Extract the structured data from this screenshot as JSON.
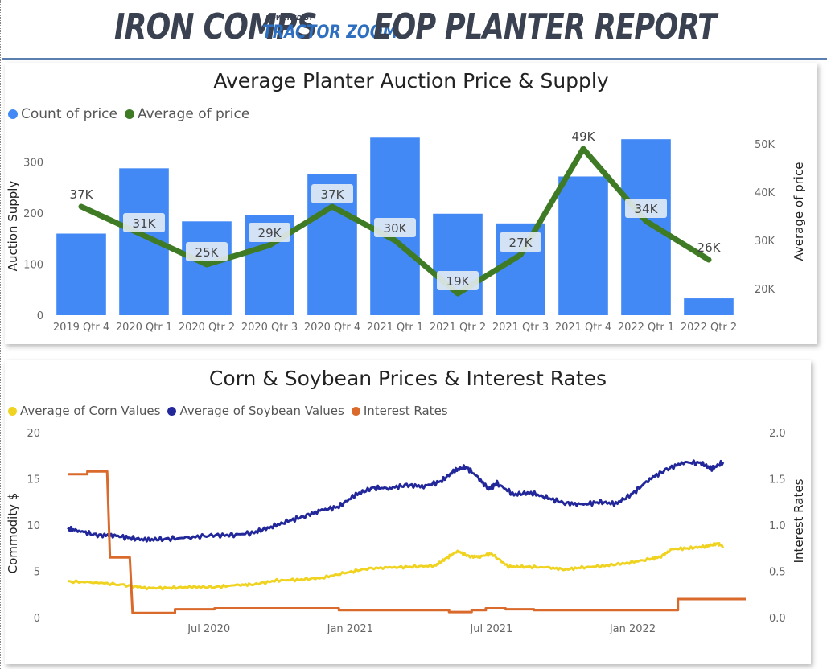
{
  "header": {
    "brand_main": "IRON COMPS",
    "brand_powered": "POWERED BY",
    "brand_sub": "TRACTOR ZOOM",
    "report_title": "EOP PLANTER REPORT"
  },
  "colors": {
    "bar": "#4389f5",
    "avg_line": "#3f7b24",
    "corn": "#f0d320",
    "soybean": "#22279a",
    "interest": "#da6a2c",
    "header_rule": "#5b7fae"
  },
  "chart1": {
    "title": "Average Planter Auction Price & Supply",
    "legend": [
      {
        "label": "Count of price",
        "color": "#4389f5"
      },
      {
        "label": "Average of price",
        "color": "#3f7b24"
      }
    ],
    "chart_data": {
      "type": "bar",
      "categories": [
        "2019 Qtr 4",
        "2020 Qtr 1",
        "2020 Qtr 2",
        "2020 Qtr 3",
        "2020 Qtr 4",
        "2021 Qtr 1",
        "2021 Qtr 2",
        "2021 Qtr 3",
        "2021 Qtr 4",
        "2022 Qtr 1",
        "2022 Qtr 2"
      ],
      "series": [
        {
          "name": "Count of price",
          "type": "bar",
          "axis": "left",
          "values": [
            160,
            288,
            184,
            197,
            276,
            348,
            199,
            180,
            272,
            345,
            33
          ]
        },
        {
          "name": "Average of price",
          "type": "line",
          "axis": "right",
          "values": [
            37000,
            31000,
            25000,
            29000,
            37000,
            30000,
            19000,
            27000,
            49000,
            34000,
            26000
          ],
          "data_labels": [
            "37K",
            "31K",
            "25K",
            "29K",
            "37K",
            "30K",
            "19K",
            "27K",
            "49K",
            "34K",
            "26K"
          ]
        }
      ],
      "ylabel": "Auction Supply",
      "ylim": [
        0,
        350
      ],
      "yticks": [
        {
          "v": 0,
          "label": "0"
        },
        {
          "v": 100,
          "label": "100"
        },
        {
          "v": 200,
          "label": "200"
        },
        {
          "v": 300,
          "label": "300"
        }
      ],
      "y2label": "Average of price",
      "y2lim": [
        14500,
        51500
      ],
      "y2ticks": [
        {
          "v": 20000,
          "label": "20K"
        },
        {
          "v": 30000,
          "label": "30K"
        },
        {
          "v": 40000,
          "label": "40K"
        },
        {
          "v": 50000,
          "label": "50K"
        }
      ]
    }
  },
  "chart2": {
    "title": "Corn & Soybean Prices & Interest Rates",
    "legend": [
      {
        "label": "Average of Corn Values",
        "color": "#f0d320"
      },
      {
        "label": "Average of Soybean Values",
        "color": "#22279a"
      },
      {
        "label": "Interest Rates",
        "color": "#da6a2c"
      }
    ],
    "chart_data": {
      "type": "line",
      "x_range": [
        "2019-12-15",
        "2022-06-01"
      ],
      "xticks": [
        {
          "t": 2020.5,
          "label": "Jul 2020"
        },
        {
          "t": 2021.0,
          "label": "Jan 2021"
        },
        {
          "t": 2021.5,
          "label": "Jul 2021"
        },
        {
          "t": 2022.0,
          "label": "Jan 2022"
        }
      ],
      "ylabel": "Commodity $",
      "ylim": [
        0,
        20
      ],
      "yticks": [
        {
          "v": 0,
          "label": "0"
        },
        {
          "v": 5,
          "label": "5"
        },
        {
          "v": 10,
          "label": "10"
        },
        {
          "v": 15,
          "label": "15"
        },
        {
          "v": 20,
          "label": "20"
        }
      ],
      "y2label": "Interest Rates",
      "y2lim": [
        0,
        2.0
      ],
      "y2ticks": [
        {
          "v": 0,
          "label": "0.0"
        },
        {
          "v": 0.5,
          "label": "0.5"
        },
        {
          "v": 1.0,
          "label": "1.0"
        },
        {
          "v": 1.5,
          "label": "1.5"
        },
        {
          "v": 2.0,
          "label": "2.0"
        }
      ],
      "series": [
        {
          "name": "Average of Soybean Values",
          "axis": "left",
          "points": [
            [
              2020.0,
              9.6
            ],
            [
              2020.04,
              9.4
            ],
            [
              2020.1,
              8.9
            ],
            [
              2020.16,
              8.9
            ],
            [
              2020.22,
              8.6
            ],
            [
              2020.28,
              8.4
            ],
            [
              2020.34,
              8.5
            ],
            [
              2020.42,
              8.6
            ],
            [
              2020.5,
              8.9
            ],
            [
              2020.58,
              8.9
            ],
            [
              2020.66,
              9.2
            ],
            [
              2020.72,
              9.8
            ],
            [
              2020.78,
              10.4
            ],
            [
              2020.84,
              11.0
            ],
            [
              2020.9,
              11.6
            ],
            [
              2020.96,
              12.0
            ],
            [
              2021.02,
              13.3
            ],
            [
              2021.08,
              14.0
            ],
            [
              2021.14,
              14.0
            ],
            [
              2021.2,
              14.3
            ],
            [
              2021.26,
              14.2
            ],
            [
              2021.32,
              14.7
            ],
            [
              2021.37,
              15.9
            ],
            [
              2021.41,
              16.3
            ],
            [
              2021.45,
              15.2
            ],
            [
              2021.49,
              13.9
            ],
            [
              2021.52,
              14.5
            ],
            [
              2021.58,
              13.3
            ],
            [
              2021.64,
              13.5
            ],
            [
              2021.7,
              12.9
            ],
            [
              2021.76,
              12.4
            ],
            [
              2021.82,
              12.2
            ],
            [
              2021.88,
              12.5
            ],
            [
              2021.94,
              12.3
            ],
            [
              2022.0,
              13.4
            ],
            [
              2022.06,
              15.0
            ],
            [
              2022.12,
              16.0
            ],
            [
              2022.18,
              16.8
            ],
            [
              2022.24,
              16.7
            ],
            [
              2022.28,
              16.1
            ],
            [
              2022.32,
              16.8
            ]
          ]
        },
        {
          "name": "Average of Corn Values",
          "axis": "left",
          "points": [
            [
              2020.0,
              3.9
            ],
            [
              2020.1,
              3.8
            ],
            [
              2020.2,
              3.5
            ],
            [
              2020.28,
              3.2
            ],
            [
              2020.36,
              3.2
            ],
            [
              2020.44,
              3.3
            ],
            [
              2020.52,
              3.3
            ],
            [
              2020.6,
              3.5
            ],
            [
              2020.66,
              3.6
            ],
            [
              2020.74,
              4.0
            ],
            [
              2020.82,
              4.1
            ],
            [
              2020.9,
              4.3
            ],
            [
              2020.98,
              4.8
            ],
            [
              2021.06,
              5.3
            ],
            [
              2021.14,
              5.4
            ],
            [
              2021.22,
              5.5
            ],
            [
              2021.3,
              5.6
            ],
            [
              2021.34,
              6.4
            ],
            [
              2021.38,
              7.2
            ],
            [
              2021.42,
              6.6
            ],
            [
              2021.46,
              6.6
            ],
            [
              2021.5,
              6.9
            ],
            [
              2021.56,
              5.5
            ],
            [
              2021.62,
              5.5
            ],
            [
              2021.7,
              5.4
            ],
            [
              2021.76,
              5.2
            ],
            [
              2021.82,
              5.4
            ],
            [
              2021.9,
              5.6
            ],
            [
              2021.98,
              5.9
            ],
            [
              2022.06,
              6.3
            ],
            [
              2022.1,
              6.6
            ],
            [
              2022.14,
              7.4
            ],
            [
              2022.2,
              7.5
            ],
            [
              2022.26,
              7.7
            ],
            [
              2022.3,
              8.0
            ],
            [
              2022.32,
              7.7
            ]
          ]
        },
        {
          "name": "Interest Rates",
          "axis": "right",
          "points": [
            [
              2020.0,
              1.55
            ],
            [
              2020.07,
              1.55
            ],
            [
              2020.07,
              1.58
            ],
            [
              2020.14,
              1.58
            ],
            [
              2020.15,
              0.65
            ],
            [
              2020.22,
              0.65
            ],
            [
              2020.23,
              0.05
            ],
            [
              2020.38,
              0.05
            ],
            [
              2020.38,
              0.09
            ],
            [
              2020.52,
              0.09
            ],
            [
              2020.52,
              0.1
            ],
            [
              2020.96,
              0.1
            ],
            [
              2020.96,
              0.08
            ],
            [
              2021.35,
              0.08
            ],
            [
              2021.35,
              0.06
            ],
            [
              2021.43,
              0.06
            ],
            [
              2021.43,
              0.08
            ],
            [
              2021.48,
              0.08
            ],
            [
              2021.48,
              0.1
            ],
            [
              2021.55,
              0.1
            ],
            [
              2021.55,
              0.09
            ],
            [
              2021.65,
              0.09
            ],
            [
              2021.65,
              0.08
            ],
            [
              2022.16,
              0.08
            ],
            [
              2022.16,
              0.2
            ],
            [
              2022.4,
              0.2
            ]
          ]
        }
      ]
    }
  }
}
